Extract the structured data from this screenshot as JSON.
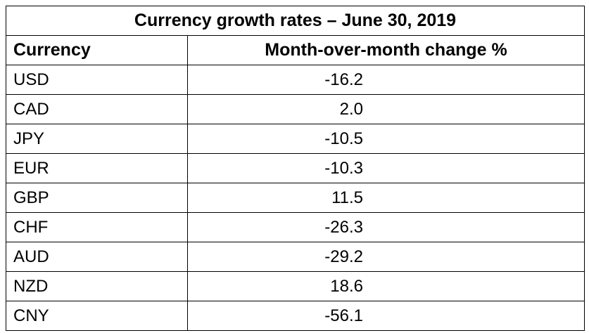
{
  "chart_data": {
    "type": "table",
    "title": "Currency growth rates – June 30, 2019",
    "columns": [
      "Currency",
      "Month-over-month change %"
    ],
    "rows": [
      {
        "currency": "USD",
        "change": "-16.2"
      },
      {
        "currency": "CAD",
        "change": "2.0"
      },
      {
        "currency": "JPY",
        "change": "-10.5"
      },
      {
        "currency": "EUR",
        "change": "-10.3"
      },
      {
        "currency": "GBP",
        "change": "11.5"
      },
      {
        "currency": "CHF",
        "change": "-26.3"
      },
      {
        "currency": "AUD",
        "change": "-29.2"
      },
      {
        "currency": "NZD",
        "change": "18.6"
      },
      {
        "currency": "CNY",
        "change": "-56.1"
      }
    ]
  }
}
